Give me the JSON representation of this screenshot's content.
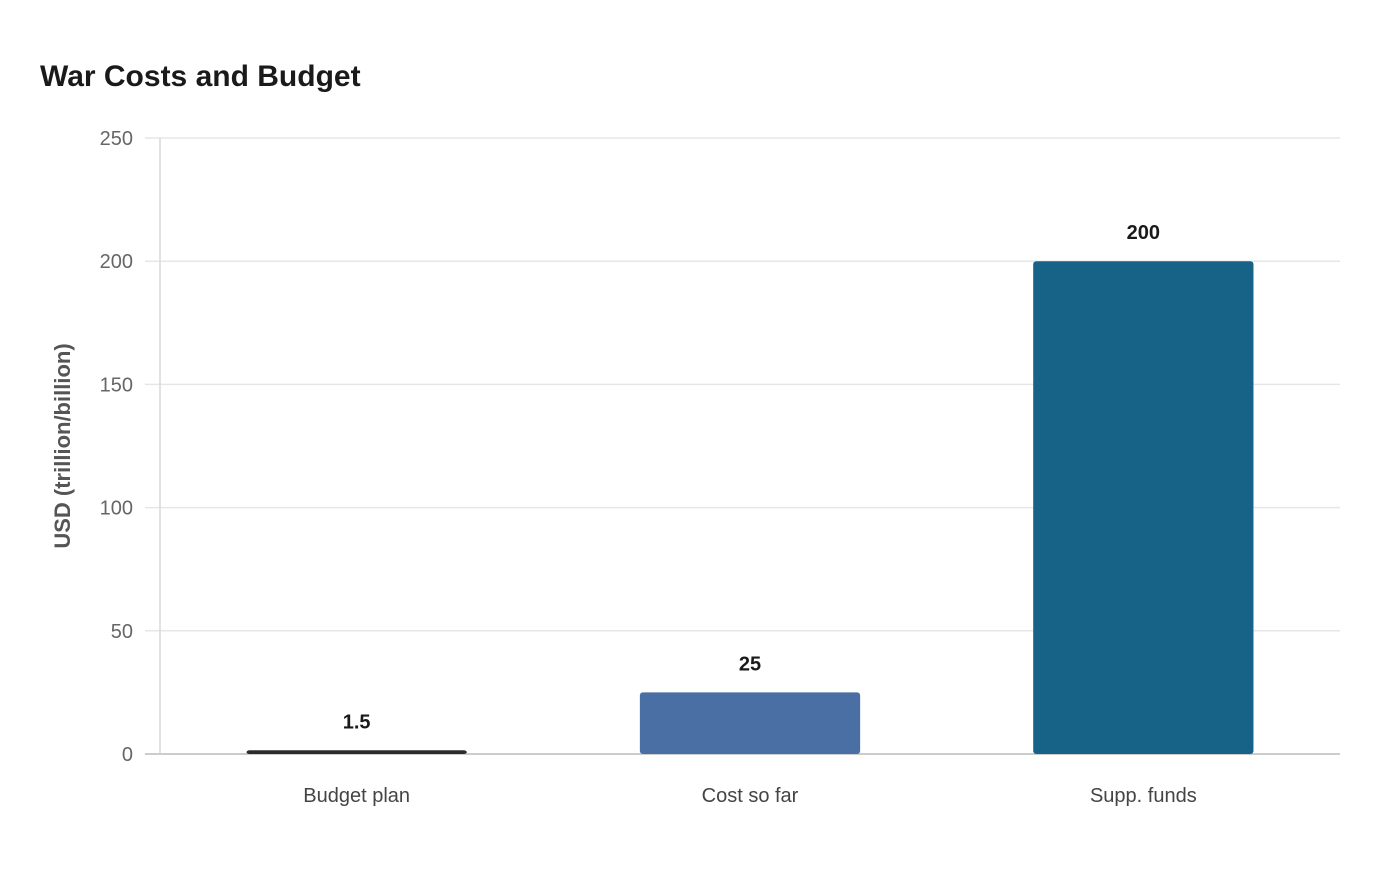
{
  "chart_data": {
    "type": "bar",
    "title": "War Costs and Budget",
    "xlabel": "",
    "ylabel": "USD (trillion/billion)",
    "categories": [
      "Budget plan",
      "Cost so far",
      "Supp. funds"
    ],
    "values": [
      1.5,
      25,
      200
    ],
    "value_labels": [
      "1.5",
      "25",
      "200"
    ],
    "bar_colors": [
      "#2b2b2b",
      "#4a6fa5",
      "#176388"
    ],
    "ylim": [
      0,
      250
    ],
    "yticks": [
      0,
      50,
      100,
      150,
      200,
      250
    ],
    "grid": true,
    "legend": "none"
  }
}
